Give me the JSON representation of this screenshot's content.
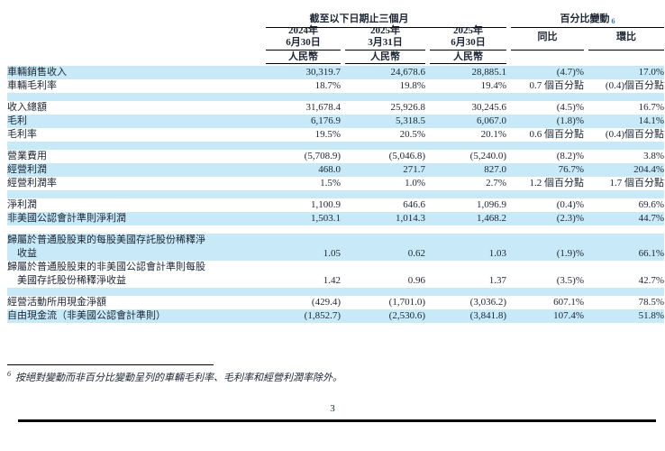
{
  "page_number": "3",
  "footnote": {
    "marker": "6",
    "text": "按絕對變動而非百分比變動呈列的車輛毛利率、毛利率和經營利潤率除外。"
  },
  "colors": {
    "row_highlight": "#c7e9f8",
    "text_ink": "#1c2533",
    "superscript_accent": "#2f6db5"
  },
  "table": {
    "group_headers": [
      {
        "label": "截至以下日期止三個月"
      },
      {
        "label": "百分比變動",
        "superscript": "6"
      }
    ],
    "columns": [
      {
        "id": "q2-2024",
        "date_line1": "2024年",
        "date_line2": "6月30日",
        "currency": "人民幣"
      },
      {
        "id": "q1-2025",
        "date_line1": "2025年",
        "date_line2": "3月31日",
        "currency": "人民幣"
      },
      {
        "id": "q2-2025",
        "date_line1": "2025年",
        "date_line2": "6月30日",
        "currency": "人民幣"
      },
      {
        "id": "yoy",
        "label": "同比"
      },
      {
        "id": "qoq",
        "label": "環比"
      }
    ],
    "rows": [
      {
        "type": "data",
        "shaded": true,
        "label": "車輛銷售收入",
        "values": [
          "30,319.7",
          "24,678.6",
          "28,885.1",
          "(4.7)%",
          "17.0%"
        ]
      },
      {
        "type": "data",
        "shaded": false,
        "label": "車輛毛利率",
        "values": [
          "18.7%",
          "19.8%",
          "19.4%",
          "0.7 個百分點",
          "(0.4)個百分點"
        ]
      },
      {
        "type": "spacer",
        "shaded": true
      },
      {
        "type": "data",
        "shaded": false,
        "label": "收入總額",
        "values": [
          "31,678.4",
          "25,926.8",
          "30,245.6",
          "(4.5)%",
          "16.7%"
        ]
      },
      {
        "type": "data",
        "shaded": true,
        "label": "毛利",
        "values": [
          "6,176.9",
          "5,318.5",
          "6,067.0",
          "(1.8)%",
          "14.1%"
        ]
      },
      {
        "type": "data",
        "shaded": false,
        "label": "毛利率",
        "values": [
          "19.5%",
          "20.5%",
          "20.1%",
          "0.6 個百分點",
          "(0.4)個百分點"
        ]
      },
      {
        "type": "spacer",
        "shaded": true
      },
      {
        "type": "data",
        "shaded": false,
        "label": "營業費用",
        "values": [
          "(5,708.9)",
          "(5,046.8)",
          "(5,240.0)",
          "(8.2)%",
          "3.8%"
        ]
      },
      {
        "type": "data",
        "shaded": true,
        "label": "經營利潤",
        "values": [
          "468.0",
          "271.7",
          "827.0",
          "76.7%",
          "204.4%"
        ]
      },
      {
        "type": "data",
        "shaded": false,
        "label": "經營利潤率",
        "values": [
          "1.5%",
          "1.0%",
          "2.7%",
          "1.2 個百分點",
          "1.7 個百分點"
        ]
      },
      {
        "type": "spacer",
        "shaded": true
      },
      {
        "type": "data",
        "shaded": false,
        "label": "淨利潤",
        "values": [
          "1,100.9",
          "646.6",
          "1,096.9",
          "(0.4)%",
          "69.6%"
        ]
      },
      {
        "type": "data",
        "shaded": true,
        "label": "非美國公認會計準則淨利潤",
        "values": [
          "1,503.1",
          "1,014.3",
          "1,468.2",
          "(2.3)%",
          "44.7%"
        ]
      },
      {
        "type": "spacer",
        "shaded": false
      },
      {
        "type": "data",
        "shaded": true,
        "label": "歸屬於普通股股東的每股美國存託股份稀釋淨",
        "label2": "收益",
        "values": [
          "1.05",
          "0.62",
          "1.03",
          "(1.9)%",
          "66.1%"
        ]
      },
      {
        "type": "data",
        "shaded": false,
        "label": "歸屬於普通股股東的非美國公認會計準則每股",
        "label2": "美國存託股份稀釋淨收益",
        "values": [
          "1.42",
          "0.96",
          "1.37",
          "(3.5)%",
          "42.7%"
        ]
      },
      {
        "type": "spacer",
        "shaded": true
      },
      {
        "type": "data",
        "shaded": false,
        "label": "經營活動所用現金淨額",
        "values": [
          "(429.4)",
          "(1,701.0)",
          "(3,036.2)",
          "607.1%",
          "78.5%"
        ]
      },
      {
        "type": "data",
        "shaded": true,
        "label": "自由現金流（非美國公認會計準則）",
        "values": [
          "(1,852.7)",
          "(2,530.6)",
          "(3,841.8)",
          "107.4%",
          "51.8%"
        ]
      }
    ]
  }
}
